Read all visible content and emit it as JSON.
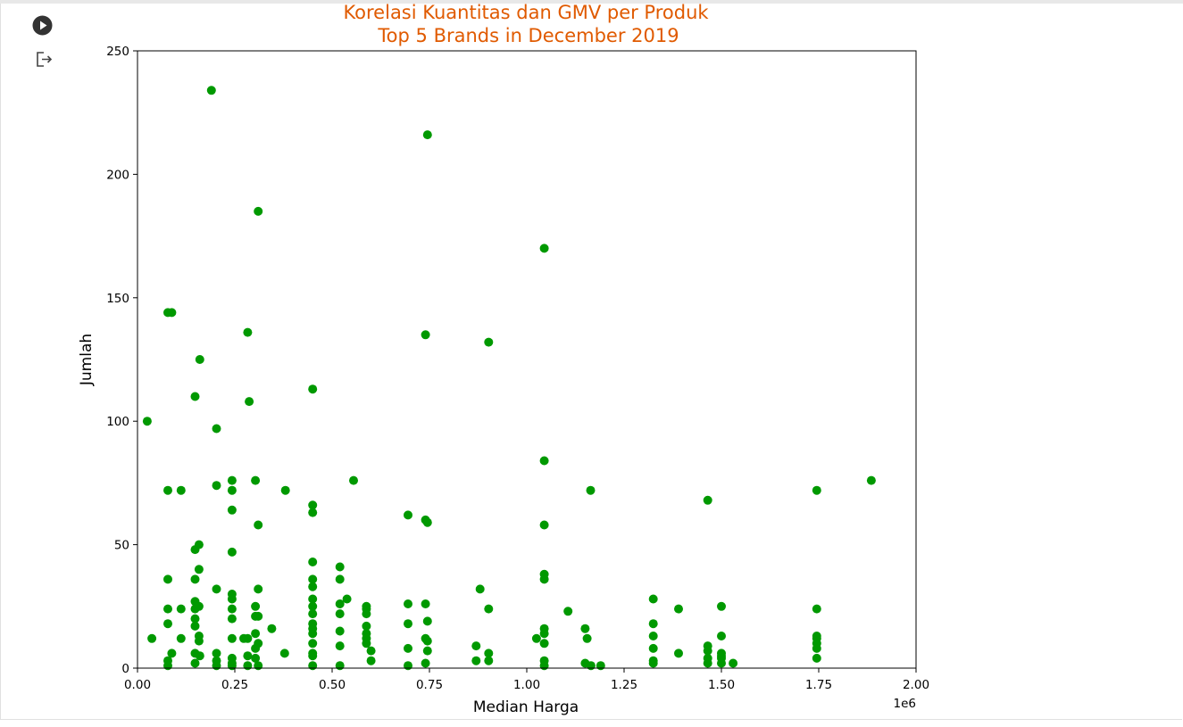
{
  "cell": {
    "run_icon": "play-circle-icon",
    "output_icon": "output-arrow-icon"
  },
  "colors": {
    "title": "#e05a00",
    "points": "#009900",
    "axes": "#000000"
  },
  "chart_data": {
    "type": "scatter",
    "title": "Korelasi Kuantitas dan GMV per Produk",
    "subtitle": "Top 5 Brands in December 2019",
    "xlabel": "Median Harga",
    "ylabel": "Jumlah",
    "x_offset_label": "1e6",
    "xlim": [
      0,
      2000000
    ],
    "ylim": [
      0,
      250
    ],
    "xticks": [
      0,
      250000,
      500000,
      750000,
      1000000,
      1250000,
      1500000,
      1750000,
      2000000
    ],
    "xtick_labels": [
      "0.00",
      "0.25",
      "0.50",
      "0.75",
      "1.00",
      "1.25",
      "1.50",
      "1.75",
      "2.00"
    ],
    "yticks": [
      0,
      50,
      100,
      150,
      200,
      250
    ],
    "ytick_labels": [
      "0",
      "50",
      "100",
      "150",
      "200",
      "250"
    ],
    "grid": false,
    "x": [
      190000,
      745000,
      310000,
      1045000,
      78000,
      88000,
      283000,
      740000,
      902000,
      160000,
      148000,
      450000,
      287000,
      25000,
      203000,
      1045000,
      243000,
      203000,
      78000,
      112000,
      243000,
      303000,
      555000,
      380000,
      1164000,
      1745000,
      1885000,
      1465000,
      450000,
      450000,
      243000,
      695000,
      745000,
      740000,
      310000,
      1045000,
      158000,
      148000,
      243000,
      450000,
      520000,
      158000,
      78000,
      148000,
      450000,
      1045000,
      1045000,
      880000,
      203000,
      243000,
      243000,
      310000,
      520000,
      450000,
      588000,
      1325000,
      450000,
      538000,
      588000,
      148000,
      695000,
      740000,
      78000,
      112000,
      158000,
      243000,
      303000,
      450000,
      520000,
      1106000,
      1390000,
      1745000,
      1500000,
      902000,
      148000,
      303000,
      450000,
      588000,
      148000,
      78000,
      243000,
      283000,
      310000,
      345000,
      745000,
      1150000,
      1325000,
      1045000,
      1500000,
      1745000,
      37000,
      112000,
      158000,
      243000,
      273000,
      450000,
      520000,
      740000,
      1155000,
      1745000,
      1025000,
      870000,
      148000,
      303000,
      450000,
      588000,
      695000,
      1465000,
      1325000,
      88000,
      203000,
      283000,
      378000,
      600000,
      745000,
      1500000,
      1390000,
      1745000,
      902000,
      158000,
      310000,
      450000,
      520000,
      588000,
      1045000,
      1465000,
      1325000,
      1500000,
      78000,
      203000,
      243000,
      303000,
      450000,
      588000,
      870000,
      1150000,
      1165000,
      1190000,
      1530000,
      1745000,
      148000,
      243000,
      450000,
      520000,
      695000,
      745000,
      1045000,
      1325000,
      1465000,
      1500000,
      160000,
      303000,
      450000,
      588000,
      902000,
      1745000,
      1045000,
      1465000,
      1325000,
      78000,
      148000,
      203000,
      243000,
      283000,
      310000,
      450000,
      520000,
      600000,
      695000,
      740000,
      1045000,
      1500000
    ],
    "y": [
      234,
      216,
      185,
      170,
      144,
      144,
      136,
      135,
      132,
      125,
      110,
      113,
      108,
      100,
      97,
      84,
      76,
      74,
      72,
      72,
      72,
      76,
      76,
      72,
      72,
      72,
      76,
      68,
      66,
      63,
      64,
      62,
      59,
      60,
      58,
      58,
      50,
      48,
      47,
      43,
      41,
      40,
      36,
      36,
      36,
      38,
      36,
      32,
      32,
      30,
      28,
      32,
      36,
      33,
      25,
      28,
      28,
      28,
      24,
      27,
      26,
      26,
      24,
      24,
      25,
      24,
      25,
      25,
      26,
      23,
      24,
      24,
      25,
      24,
      24,
      21,
      22,
      22,
      20,
      18,
      20,
      12,
      21,
      16,
      19,
      16,
      18,
      16,
      13,
      13,
      12,
      12,
      13,
      12,
      12,
      18,
      22,
      12,
      12,
      12,
      12,
      9,
      17,
      14,
      16,
      17,
      18,
      9,
      13,
      6,
      6,
      5,
      6,
      7,
      11,
      6,
      6,
      10,
      6,
      11,
      10,
      14,
      15,
      14,
      14,
      7,
      8,
      4,
      3,
      3,
      4,
      8,
      10,
      12,
      3,
      2,
      1,
      1,
      2,
      8,
      6,
      2,
      6,
      9,
      8,
      7,
      10,
      3,
      4,
      5,
      5,
      4,
      5,
      10,
      3,
      4,
      3,
      2,
      2,
      1,
      2,
      1,
      1,
      1,
      1,
      1,
      1,
      3,
      1,
      2,
      1,
      2
    ]
  }
}
